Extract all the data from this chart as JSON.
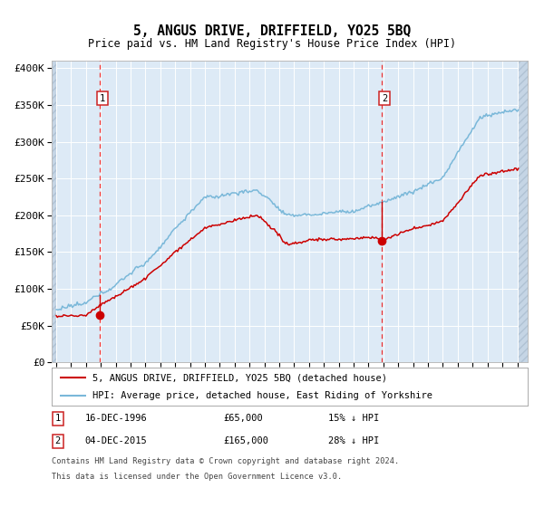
{
  "title": "5, ANGUS DRIVE, DRIFFIELD, YO25 5BQ",
  "subtitle": "Price paid vs. HM Land Registry's House Price Index (HPI)",
  "legend_line1": "5, ANGUS DRIVE, DRIFFIELD, YO25 5BQ (detached house)",
  "legend_line2": "HPI: Average price, detached house, East Riding of Yorkshire",
  "footnote1": "Contains HM Land Registry data © Crown copyright and database right 2024.",
  "footnote2": "This data is licensed under the Open Government Licence v3.0.",
  "annotation1_date": "16-DEC-1996",
  "annotation1_price": "£65,000",
  "annotation1_hpi": "15% ↓ HPI",
  "annotation2_date": "04-DEC-2015",
  "annotation2_price": "£165,000",
  "annotation2_hpi": "28% ↓ HPI",
  "sale1_date_num": 1996.958,
  "sale1_price": 65000,
  "sale2_date_num": 2015.917,
  "sale2_price": 165000,
  "hpi_color": "#7ab8d9",
  "price_color": "#cc0000",
  "bg_color": "#ddeaf6",
  "grid_color": "#ffffff",
  "vline_color": "#ee3333",
  "ylim_max": 410000,
  "ylim_min": 0,
  "ylabel_ticks": [
    0,
    50000,
    100000,
    150000,
    200000,
    250000,
    300000,
    350000,
    400000
  ],
  "ylabel_labels": [
    "£0",
    "£50K",
    "£100K",
    "£150K",
    "£200K",
    "£250K",
    "£300K",
    "£350K",
    "£400K"
  ],
  "xmin": 1993.7,
  "xmax": 2025.7
}
